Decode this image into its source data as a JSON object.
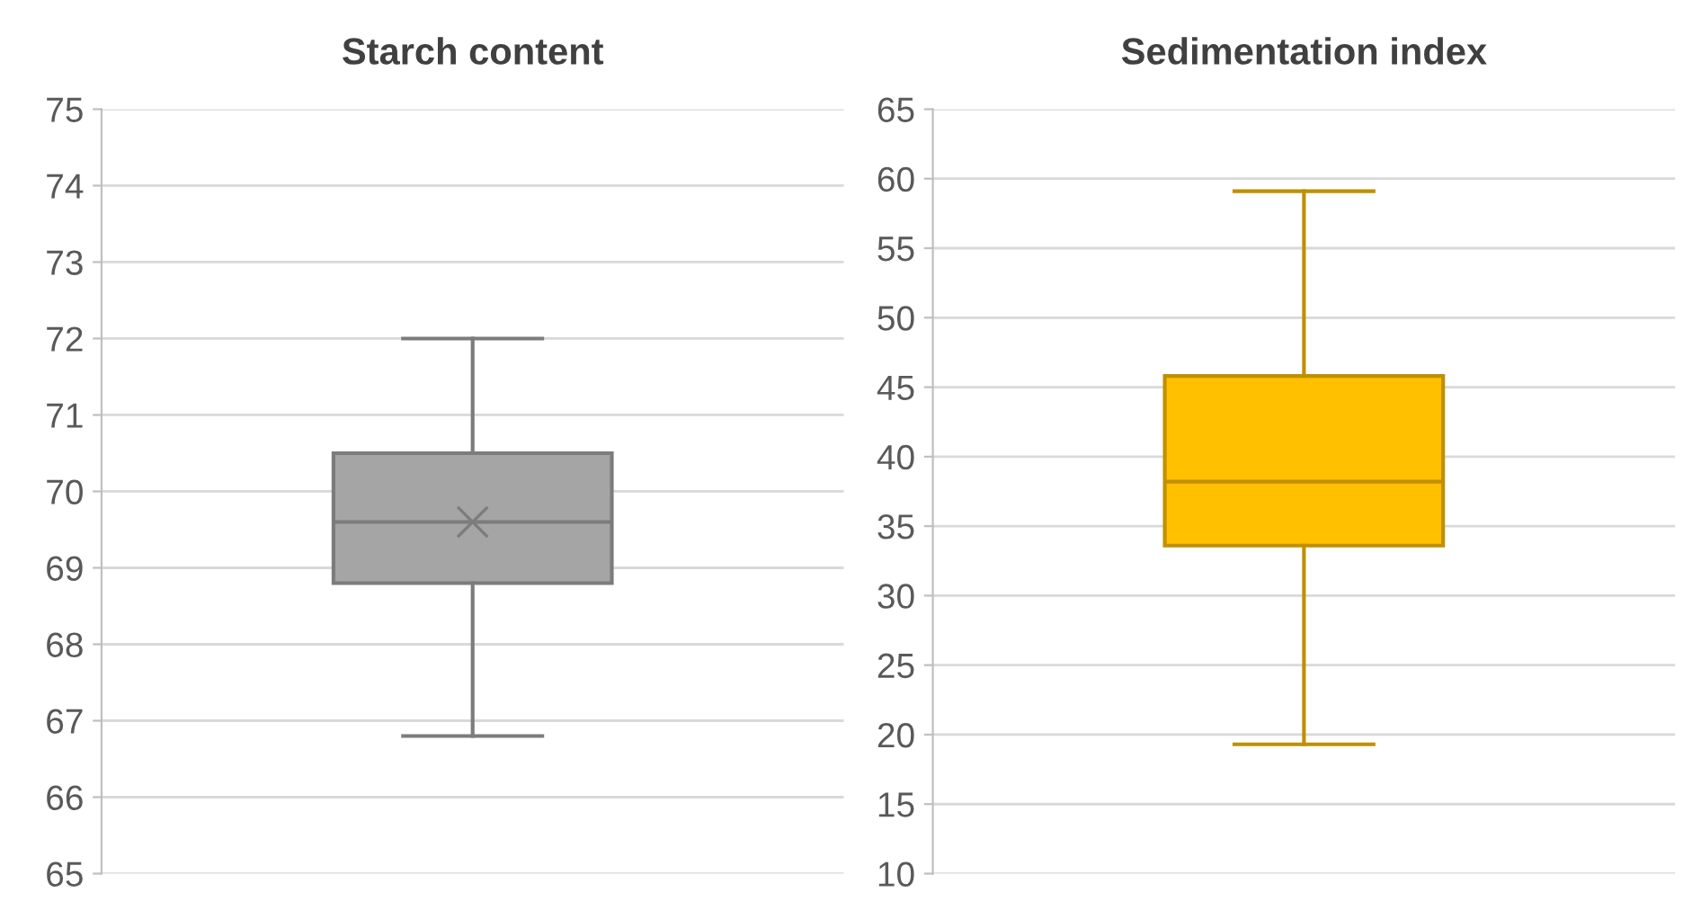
{
  "chart_data": [
    {
      "type": "box",
      "title": "Starch content",
      "categories": [
        null
      ],
      "ylim": [
        65,
        75
      ],
      "yticks": [
        65,
        66,
        67,
        68,
        69,
        70,
        71,
        72,
        73,
        74,
        75
      ],
      "grid": "y",
      "series": [
        {
          "color": "#a5a5a5",
          "boxes": [
            {
              "low": 66.8,
              "q1": 68.8,
              "median": 69.6,
              "q3": 70.5,
              "high": 72.0,
              "mean": 69.6
            }
          ]
        }
      ]
    },
    {
      "type": "box",
      "title": "Sedimentation index",
      "categories": [
        null
      ],
      "ylim": [
        10,
        65
      ],
      "yticks": [
        10,
        15,
        20,
        25,
        30,
        35,
        40,
        45,
        50,
        55,
        60,
        65
      ],
      "grid": "y",
      "series": [
        {
          "color": "#ffc000",
          "boxes": [
            {
              "low": 19.3,
              "q1": 33.6,
              "median": 38.2,
              "q3": 45.8,
              "high": 59.1
            }
          ]
        }
      ]
    }
  ]
}
